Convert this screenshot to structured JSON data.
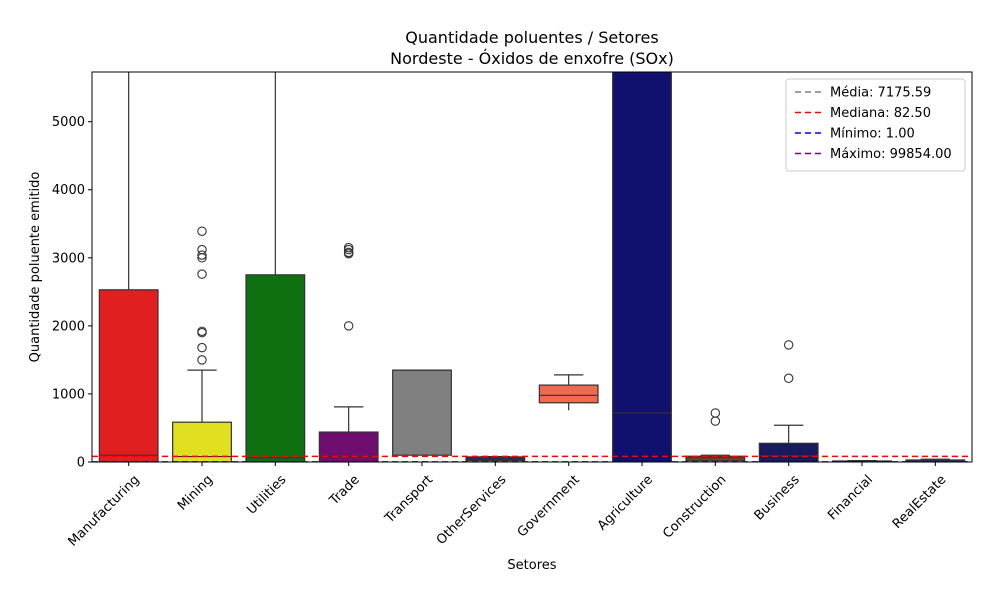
{
  "chart_data": {
    "type": "box",
    "title": [
      "Quantidade poluentes / Setores",
      "Nordeste - Óxidos de enxofre (SOx)"
    ],
    "xlabel": "Setores",
    "ylabel": "Quantidade poluente emitido",
    "ylim": [
      0,
      5730
    ],
    "yticks": [
      0,
      1000,
      2000,
      3000,
      4000,
      5000
    ],
    "yticklabels": [
      "0",
      "1000",
      "2000",
      "3000",
      "4000",
      "5000"
    ],
    "categories": [
      "Manufacturing",
      "Mining",
      "Utilities",
      "Trade",
      "Transport",
      "OtherServices",
      "Government",
      "Agriculture",
      "Construction",
      "Business",
      "Financial",
      "RealEstate"
    ],
    "boxes": [
      {
        "category": "Manufacturing",
        "color": "#e02020",
        "q1": 0,
        "median": 100,
        "q3": 2530,
        "whisker_low": 0,
        "whisker_high": 5730,
        "outliers": []
      },
      {
        "category": "Mining",
        "color": "#e0e020",
        "q1": 0,
        "median": 80,
        "q3": 585,
        "whisker_low": 0,
        "whisker_high": 1350,
        "outliers": [
          1500,
          1680,
          1900,
          1920,
          2760,
          3000,
          3040,
          3120,
          3390
        ]
      },
      {
        "category": "Utilities",
        "color": "#0e7010",
        "q1": 0,
        "median": 60,
        "q3": 2750,
        "whisker_low": 0,
        "whisker_high": 5730,
        "outliers": []
      },
      {
        "category": "Trade",
        "color": "#700e70",
        "q1": 0,
        "median": 80,
        "q3": 440,
        "whisker_low": 0,
        "whisker_high": 810,
        "outliers": [
          2000,
          3060,
          3080,
          3120,
          3150
        ]
      },
      {
        "category": "Transport",
        "color": "#808080",
        "q1": 100,
        "median": 1350,
        "q3": 1350,
        "whisker_low": 100,
        "whisker_high": 1350,
        "outliers": []
      },
      {
        "category": "OtherServices",
        "color": "#1f2b80",
        "q1": 20,
        "median": 60,
        "q3": 75,
        "whisker_low": 0,
        "whisker_high": 80,
        "outliers": []
      },
      {
        "category": "Government",
        "color": "#f06a50",
        "q1": 870,
        "median": 980,
        "q3": 1130,
        "whisker_low": 760,
        "whisker_high": 1280,
        "outliers": []
      },
      {
        "category": "Agriculture",
        "color": "#10106e",
        "q1": 0,
        "median": 720,
        "q3": 5730,
        "whisker_low": 0,
        "whisker_high": 5730,
        "outliers": []
      },
      {
        "category": "Construction",
        "color": "#8b4513",
        "q1": 20,
        "median": 60,
        "q3": 85,
        "whisker_low": 0,
        "whisker_high": 100,
        "outliers": [
          600,
          720
        ]
      },
      {
        "category": "Business",
        "color": "#1a1a5e",
        "q1": 0,
        "median": 90,
        "q3": 275,
        "whisker_low": 0,
        "whisker_high": 540,
        "outliers": [
          1230,
          1720
        ]
      },
      {
        "category": "Financial",
        "color": "#2a2a8a",
        "q1": 0,
        "median": 5,
        "q3": 15,
        "whisker_low": 0,
        "whisker_high": 20,
        "outliers": []
      },
      {
        "category": "RealEstate",
        "color": "#2a2a8a",
        "q1": 0,
        "median": 10,
        "q3": 30,
        "whisker_low": 0,
        "whisker_high": 40,
        "outliers": []
      }
    ],
    "reference_lines": [
      {
        "label": "Média: 7175.59",
        "value": 7175.59,
        "color": "#808080"
      },
      {
        "label": "Mediana: 82.50",
        "value": 82.5,
        "color": "#ff0000"
      },
      {
        "label": "Mínimo: 1.00",
        "value": 1.0,
        "color": "#0000ff"
      },
      {
        "label": "Máximo: 99854.00",
        "value": 99854.0,
        "color": "#800080"
      }
    ],
    "legend_position": "top-right",
    "grid": false
  }
}
